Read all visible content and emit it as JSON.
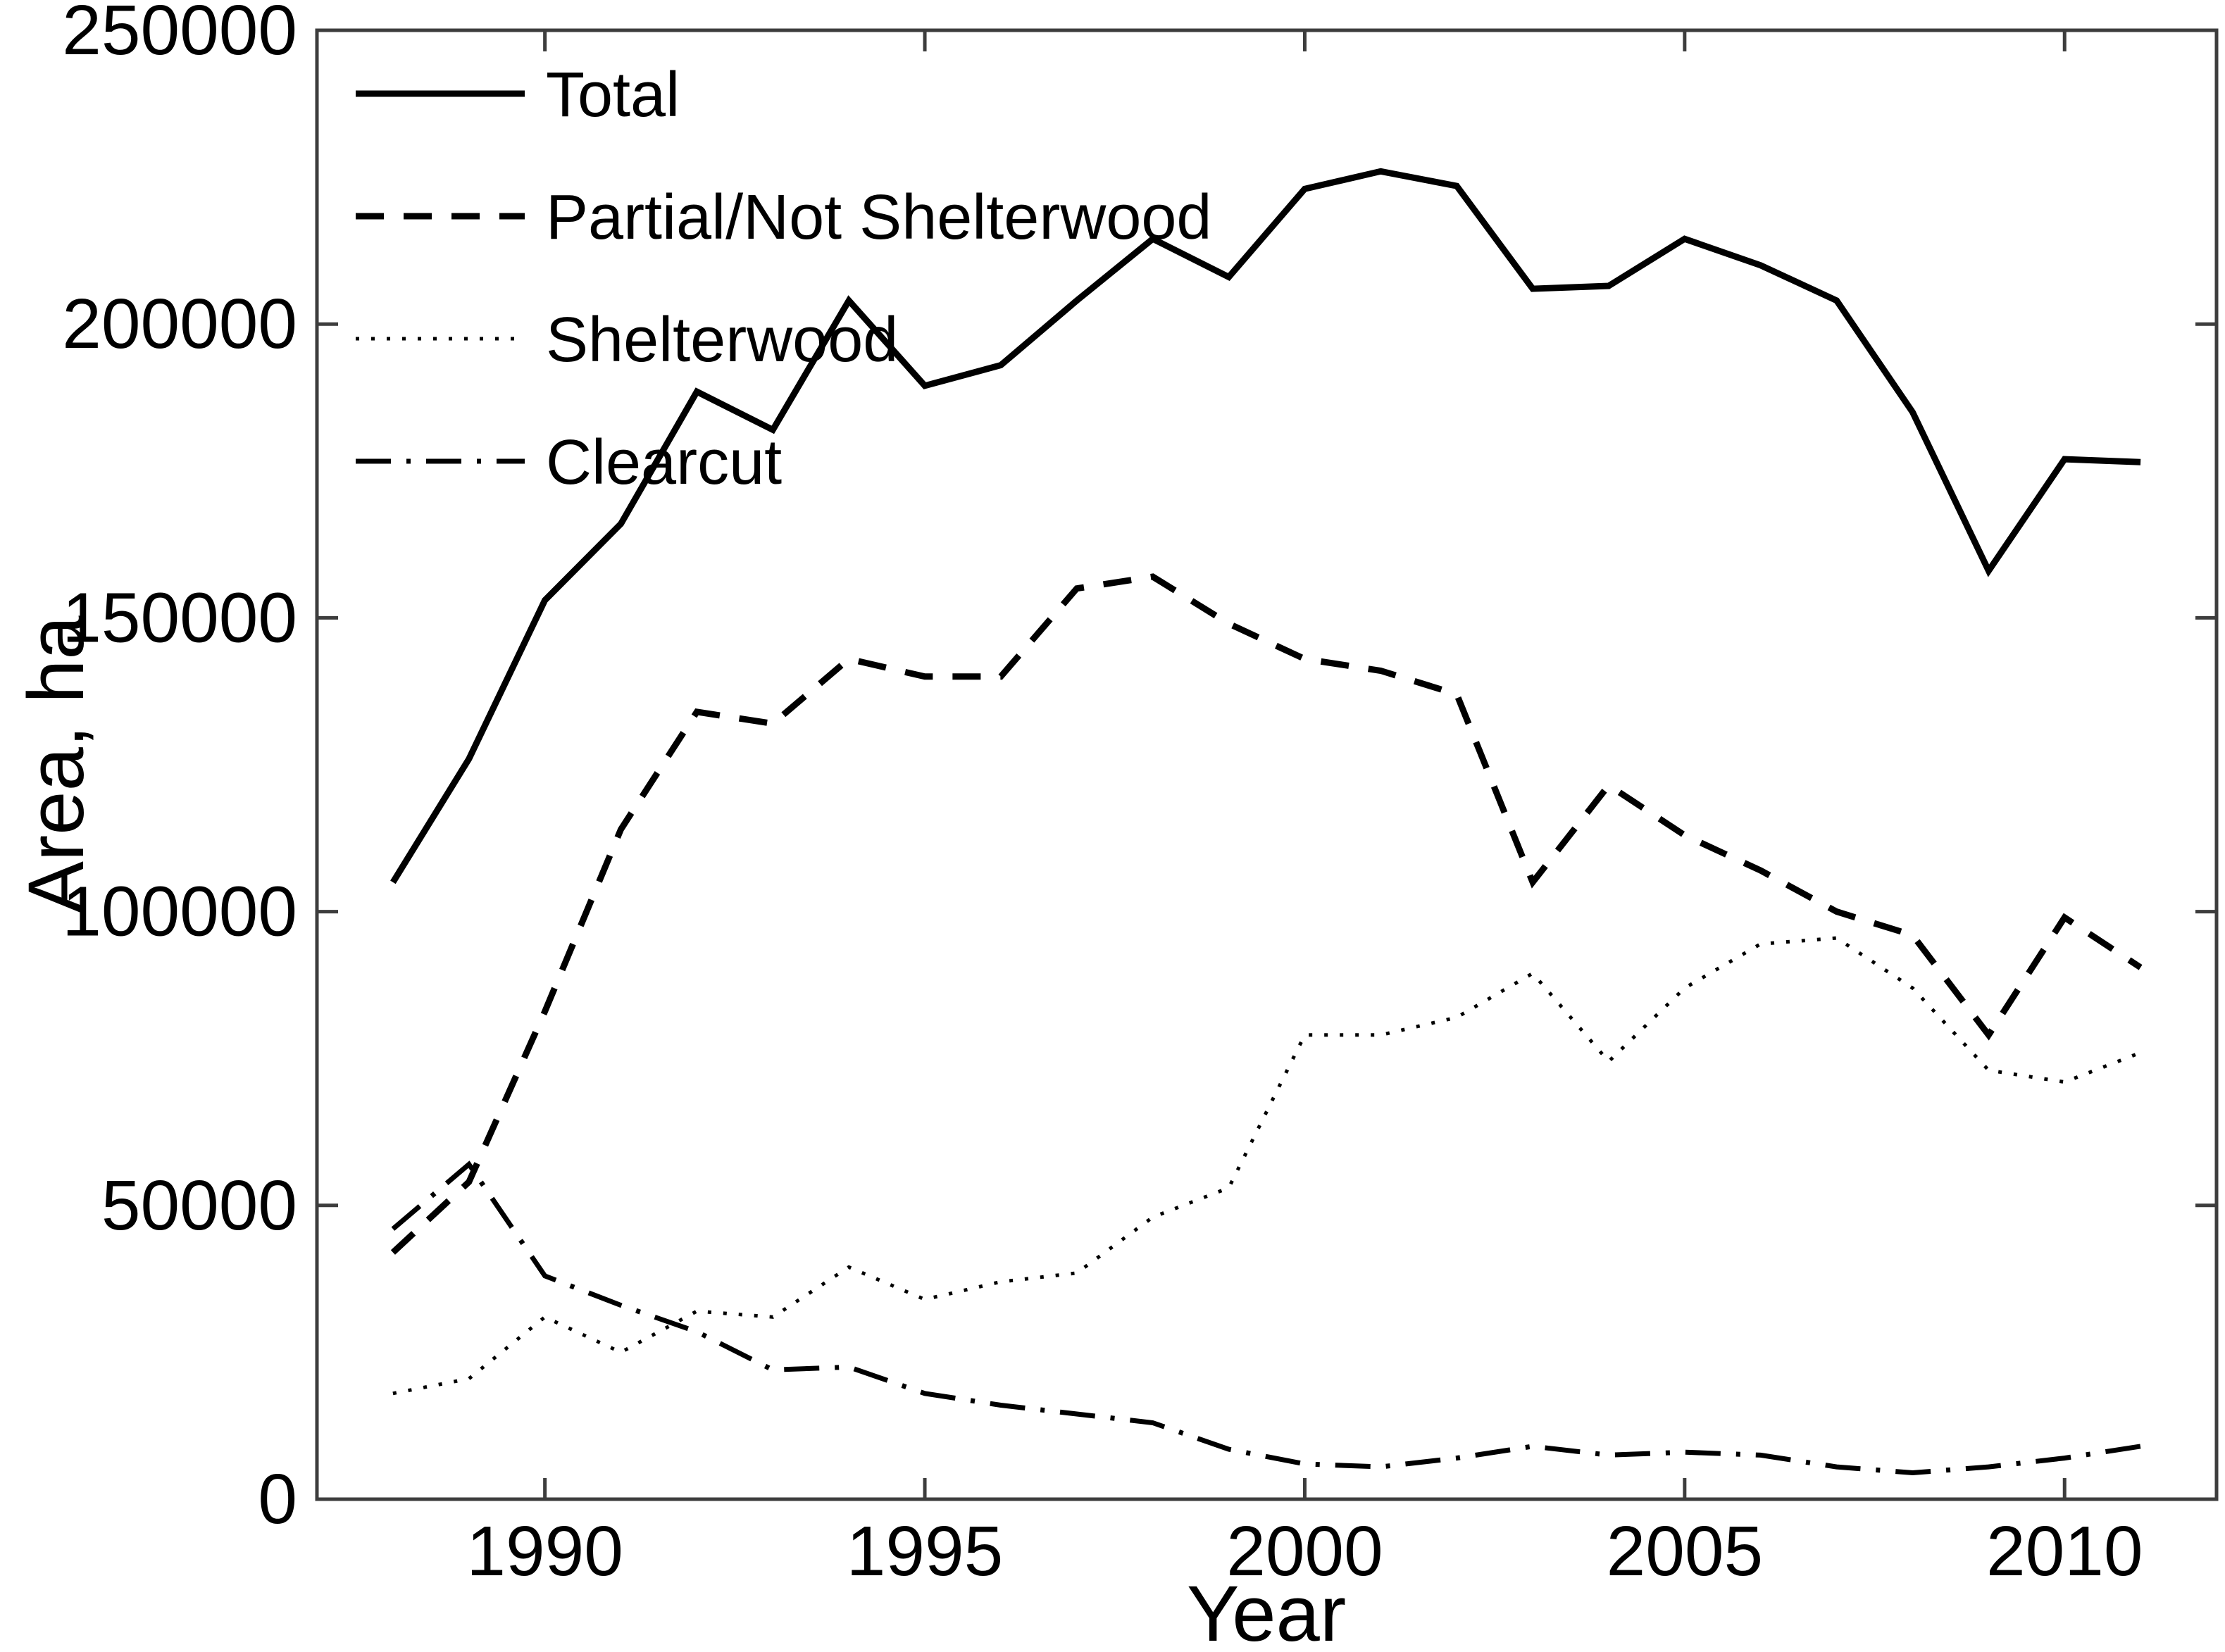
{
  "chart_data": {
    "type": "line",
    "title": "",
    "xlabel": "Year",
    "ylabel": "Area, ha",
    "x": [
      1988,
      1989,
      1990,
      1991,
      1992,
      1993,
      1994,
      1995,
      1996,
      1997,
      1998,
      1999,
      2000,
      2001,
      2002,
      2003,
      2004,
      2005,
      2006,
      2007,
      2008,
      2009,
      2010,
      2011
    ],
    "series": [
      {
        "name": "Total",
        "style": "solid",
        "values": [
          105000,
          126000,
          153000,
          166000,
          188500,
          182000,
          204000,
          189500,
          193000,
          204000,
          214500,
          208000,
          223000,
          226000,
          223500,
          206000,
          206500,
          214500,
          210000,
          204000,
          185000,
          158000,
          177000,
          176500
        ]
      },
      {
        "name": "Partial/Not Shelterwood",
        "style": "dashed",
        "values": [
          42000,
          54000,
          83000,
          114000,
          134000,
          132000,
          143000,
          140000,
          140000,
          155000,
          157000,
          149000,
          143000,
          141000,
          137000,
          105000,
          121500,
          113000,
          107000,
          100000,
          96000,
          79000,
          99000,
          90500
        ]
      },
      {
        "name": "Shelterwood",
        "style": "dotted",
        "values": [
          18000,
          20500,
          31000,
          25000,
          32000,
          31000,
          39500,
          34000,
          37000,
          38500,
          48000,
          53000,
          79000,
          79000,
          82000,
          89500,
          74500,
          87000,
          94500,
          95500,
          87000,
          73000,
          71000,
          76000
        ]
      },
      {
        "name": "Clearcut",
        "style": "dashdot",
        "values": [
          46000,
          57000,
          38000,
          33000,
          28500,
          22000,
          22500,
          18000,
          16000,
          14500,
          13000,
          8500,
          6000,
          5500,
          7000,
          9000,
          7500,
          8000,
          7500,
          5500,
          4500,
          5500,
          7000,
          9000
        ]
      }
    ],
    "xlim": [
      1987,
      2012
    ],
    "ylim": [
      0,
      250000
    ],
    "x_ticks": [
      1990,
      1995,
      2000,
      2005,
      2010
    ],
    "y_ticks": [
      0,
      50000,
      100000,
      150000,
      200000,
      250000
    ],
    "grid": false,
    "legend_position": "top-left",
    "line_color": "#000000",
    "axis_color": "#3d3d3d",
    "background_color": "#ffffff"
  }
}
